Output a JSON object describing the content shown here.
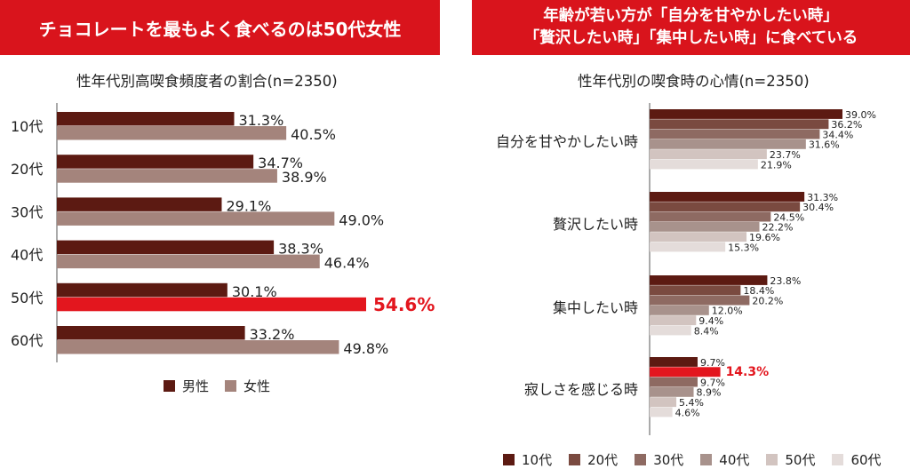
{
  "left_panel": {
    "banner": "チョコレートを最もよく食べるのは50代女性",
    "subtitle": "性年代別高喫食頻度者の割合(n=2350)"
  },
  "right_panel": {
    "banner_line1": "年齢が若い方が「自分を甘やかしたい時」",
    "banner_line2": "「贅沢したい時」「集中したい時」に食べている",
    "subtitle": "性年代別の喫食時の心情(n=2350)"
  },
  "chart_data": [
    {
      "type": "bar",
      "orientation": "horizontal",
      "title": "性年代別高喫食頻度者の割合(n=2350)",
      "categories": [
        "10代",
        "20代",
        "30代",
        "40代",
        "50代",
        "60代"
      ],
      "series": [
        {
          "name": "男性",
          "values": [
            31.3,
            34.7,
            29.1,
            38.3,
            30.1,
            33.2
          ],
          "color": "#5c1a12"
        },
        {
          "name": "女性",
          "values": [
            40.5,
            38.9,
            49.0,
            46.4,
            54.6,
            49.8
          ],
          "color": "#a4847c"
        }
      ],
      "highlight": {
        "series": "女性",
        "category": "50代",
        "color": "#e3161e"
      },
      "value_suffix": "%",
      "legend": "bottom"
    },
    {
      "type": "bar",
      "orientation": "horizontal",
      "title": "性年代別の喫食時の心情(n=2350)",
      "categories": [
        "自分を甘やかしたい時",
        "贅沢したい時",
        "集中したい時",
        "寂しさを感じる時"
      ],
      "series": [
        {
          "name": "10代",
          "values": [
            39.0,
            31.3,
            23.8,
            9.7
          ],
          "color": "#5c1a12"
        },
        {
          "name": "20代",
          "values": [
            36.2,
            30.4,
            18.4,
            14.3
          ],
          "color": "#7a4a40"
        },
        {
          "name": "30代",
          "values": [
            34.4,
            24.5,
            20.2,
            9.7
          ],
          "color": "#8e6a62"
        },
        {
          "name": "40代",
          "values": [
            31.6,
            22.2,
            12.0,
            8.9
          ],
          "color": "#a8928c"
        },
        {
          "name": "50代",
          "values": [
            23.7,
            19.6,
            9.4,
            5.4
          ],
          "color": "#d2c4c0"
        },
        {
          "name": "60代",
          "values": [
            21.9,
            15.3,
            8.4,
            4.6
          ],
          "color": "#e4dcda"
        }
      ],
      "highlight": {
        "series": "20代",
        "category": "寂しさを感じる時",
        "color": "#e3161e"
      },
      "value_suffix": "%",
      "legend": "bottom"
    }
  ]
}
